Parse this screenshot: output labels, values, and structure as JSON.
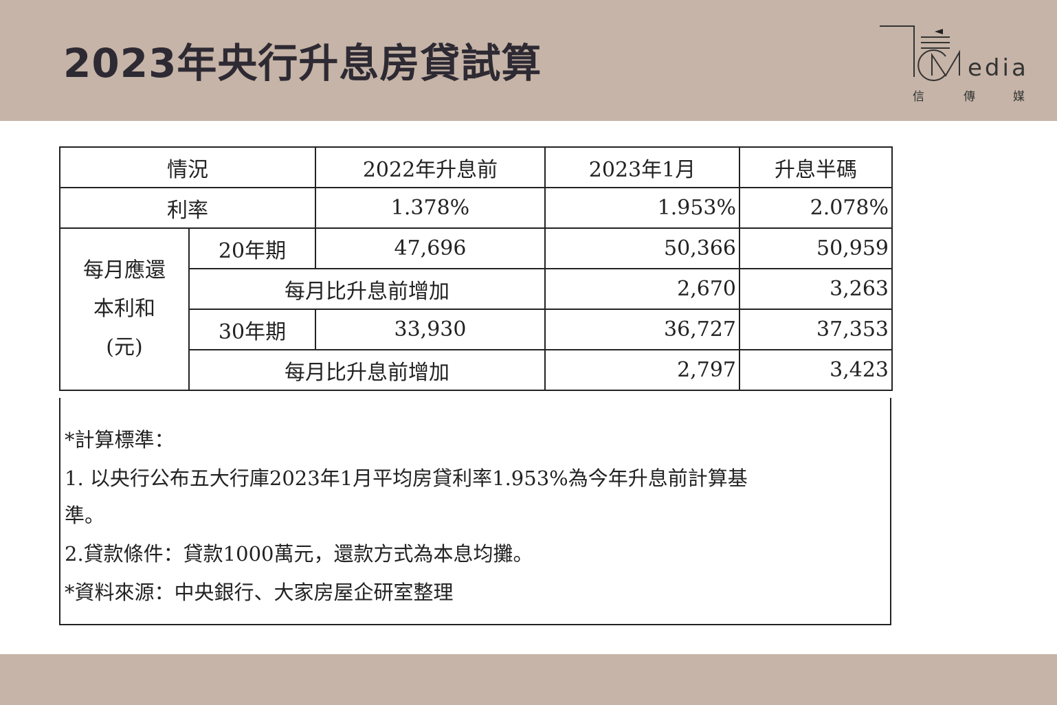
{
  "header": {
    "title": "2023年央行升息房貸試算",
    "logo": {
      "text": "Media",
      "sub": [
        "信",
        "傳",
        "媒"
      ]
    },
    "band_color": "#c5b4a7"
  },
  "table": {
    "columns": [
      "情況",
      "2022年升息前",
      "2023年1月",
      "升息半碼"
    ],
    "rate_row": {
      "label": "利率",
      "values": [
        "1.378%",
        "1.953%",
        "2.078%"
      ]
    },
    "group_label": [
      "每月應還",
      "本利和",
      "(元)"
    ],
    "rows": [
      {
        "label": "20年期",
        "values": [
          "47,696",
          "50,366",
          "50,959"
        ]
      },
      {
        "label": "每月比升息前增加",
        "values": [
          "2,670",
          "3,263"
        ]
      },
      {
        "label": "30年期",
        "values": [
          "33,930",
          "36,727",
          "37,353"
        ]
      },
      {
        "label": "每月比升息前增加",
        "values": [
          "2,797",
          "3,423"
        ]
      }
    ]
  },
  "notes": {
    "heading": "*計算標準：",
    "item1_line1": "1.  以央行公布五大行庫2023年1月平均房貸利率1.953%為今年升息前計算基",
    "item1_line2": "準。",
    "item2": "2.貸款條件：貸款1000萬元，還款方式為本息均攤。",
    "source": "*資料來源：中央銀行、大家房屋企研室整理"
  }
}
